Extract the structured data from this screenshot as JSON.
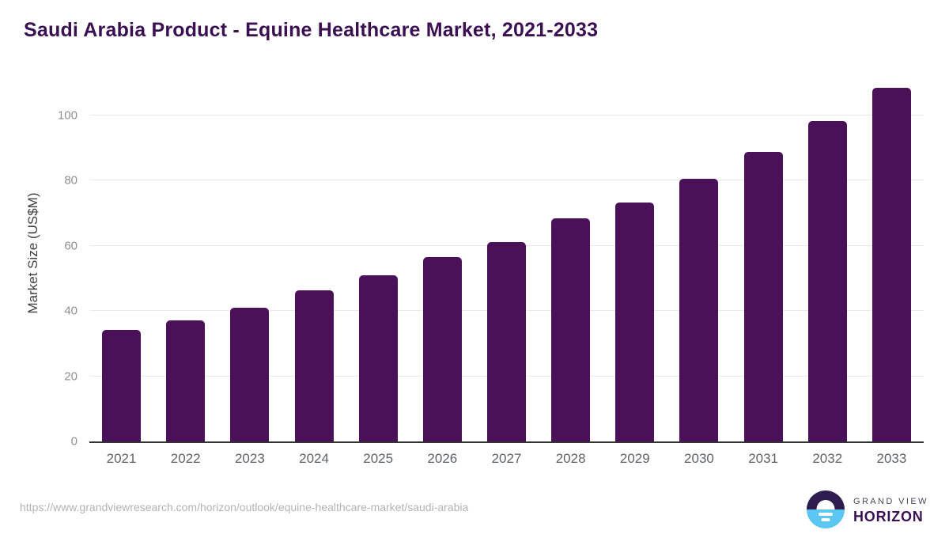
{
  "page": {
    "title": "Saudi Arabia Product - Equine Healthcare Market, 2021-2033",
    "source_url": "https://www.grandviewresearch.com/horizon/outlook/equine-healthcare-market/saudi-arabia"
  },
  "logo": {
    "line1": "GRAND VIEW",
    "line2": "HORIZON"
  },
  "colors": {
    "bar": "#4a1158",
    "title": "#3b1053",
    "gridline": "#e9e9e9",
    "axis_line": "#333333",
    "y_tick_label": "#8e8e8e",
    "x_tick_label": "#5f6368",
    "axis_title": "#404040",
    "url_text": "#b3b3b3",
    "logo_blue": "#5bc6f2",
    "logo_dark_purple": "#2e1d4e"
  },
  "chart_data": {
    "type": "bar",
    "title": "Saudi Arabia Product - Equine Healthcare Market, 2021-2033",
    "categories": [
      "2021",
      "2022",
      "2023",
      "2024",
      "2025",
      "2026",
      "2027",
      "2028",
      "2029",
      "2030",
      "2031",
      "2032",
      "2033"
    ],
    "values": [
      34.2,
      37.1,
      41.0,
      46.4,
      51.0,
      56.4,
      61.2,
      68.3,
      73.2,
      80.6,
      88.8,
      98.1,
      108.3
    ],
    "xlabel": "",
    "ylabel": "Market Size (US$M)",
    "ylim": [
      0,
      112
    ],
    "y_ticks": [
      0,
      20,
      40,
      60,
      80,
      100
    ],
    "grid": "horizontal-only",
    "legend": "none",
    "bar_color": "#4a1158"
  }
}
